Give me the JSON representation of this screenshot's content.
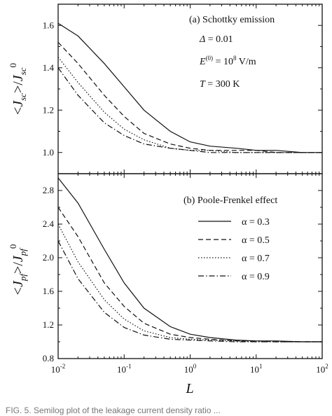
{
  "chart_data": [
    {
      "type": "line",
      "panel": "a",
      "annotation_title": "(a) Schottky emission",
      "annotation_params": [
        "Δ = 0.01",
        "E(0) = 10^8 V/m",
        "T = 300 K"
      ],
      "ylabel": "<Jsc>/Jsc0",
      "xlabel": "",
      "xscale": "log",
      "xlim": [
        0.01,
        100
      ],
      "ylim": [
        0.9,
        1.7
      ],
      "yticks": [
        1.0,
        1.2,
        1.4,
        1.6
      ],
      "ytick_labels": [
        "1.0",
        "1.2",
        "1.4",
        "1.6"
      ],
      "series": [
        {
          "name": "α = 0.3",
          "style": "solid",
          "x": [
            0.01,
            0.02,
            0.05,
            0.1,
            0.2,
            0.5,
            1,
            2,
            5,
            10,
            20,
            50,
            100
          ],
          "y": [
            1.61,
            1.55,
            1.42,
            1.31,
            1.2,
            1.1,
            1.05,
            1.03,
            1.02,
            1.01,
            1.01,
            1.0,
            1.0
          ]
        },
        {
          "name": "α = 0.5",
          "style": "dashed",
          "x": [
            0.01,
            0.02,
            0.05,
            0.1,
            0.2,
            0.5,
            1,
            2,
            5,
            10,
            20,
            50,
            100
          ],
          "y": [
            1.52,
            1.42,
            1.27,
            1.17,
            1.09,
            1.04,
            1.02,
            1.01,
            1.01,
            1.01,
            1.0,
            1.0,
            1.0
          ]
        },
        {
          "name": "α = 0.7",
          "style": "dotted",
          "x": [
            0.01,
            0.02,
            0.05,
            0.1,
            0.2,
            0.5,
            1,
            2,
            5,
            10,
            20,
            50,
            100
          ],
          "y": [
            1.45,
            1.33,
            1.19,
            1.11,
            1.06,
            1.02,
            1.01,
            1.01,
            1.0,
            1.0,
            1.0,
            1.0,
            1.0
          ]
        },
        {
          "name": "α = 0.9",
          "style": "dashdot",
          "x": [
            0.01,
            0.02,
            0.05,
            0.1,
            0.2,
            0.5,
            1,
            2,
            5,
            10,
            20,
            50,
            100
          ],
          "y": [
            1.4,
            1.27,
            1.14,
            1.08,
            1.04,
            1.02,
            1.01,
            1.0,
            1.0,
            1.0,
            1.0,
            1.0,
            1.0
          ]
        }
      ]
    },
    {
      "type": "line",
      "panel": "b",
      "annotation_title": "(b) Poole-Frenkel effect",
      "ylabel": "<Jpf>/Jpf0",
      "xlabel": "L",
      "xscale": "log",
      "xlim": [
        0.01,
        100
      ],
      "ylim": [
        0.8,
        3.0
      ],
      "yticks": [
        0.8,
        1.2,
        1.6,
        2.0,
        2.4,
        2.8
      ],
      "ytick_labels": [
        "0.8",
        "1.2",
        "1.6",
        "2.0",
        "2.4",
        "2.8"
      ],
      "xtick_values": [
        0.01,
        0.1,
        1,
        10,
        100
      ],
      "legend": "right",
      "series": [
        {
          "name": "α = 0.3",
          "style": "solid",
          "x": [
            0.01,
            0.02,
            0.05,
            0.1,
            0.2,
            0.5,
            1,
            2,
            5,
            10,
            20,
            50,
            100
          ],
          "y": [
            2.95,
            2.65,
            2.1,
            1.7,
            1.4,
            1.18,
            1.09,
            1.05,
            1.02,
            1.01,
            1.01,
            1.0,
            1.0
          ]
        },
        {
          "name": "α = 0.5",
          "style": "dashed",
          "x": [
            0.01,
            0.02,
            0.05,
            0.1,
            0.2,
            0.5,
            1,
            2,
            5,
            10,
            20,
            50,
            100
          ],
          "y": [
            2.6,
            2.25,
            1.7,
            1.42,
            1.22,
            1.09,
            1.05,
            1.03,
            1.01,
            1.01,
            1.0,
            1.0,
            1.0
          ]
        },
        {
          "name": "α = 0.7",
          "style": "dotted",
          "x": [
            0.01,
            0.02,
            0.05,
            0.1,
            0.2,
            0.5,
            1,
            2,
            5,
            10,
            20,
            50,
            100
          ],
          "y": [
            2.4,
            1.95,
            1.5,
            1.27,
            1.13,
            1.05,
            1.03,
            1.02,
            1.01,
            1.0,
            1.0,
            1.0,
            1.0
          ]
        },
        {
          "name": "α = 0.9",
          "style": "dashdot",
          "x": [
            0.01,
            0.02,
            0.05,
            0.1,
            0.2,
            0.5,
            1,
            2,
            5,
            10,
            20,
            50,
            100
          ],
          "y": [
            2.2,
            1.75,
            1.35,
            1.17,
            1.08,
            1.03,
            1.02,
            1.01,
            1.0,
            1.0,
            1.0,
            1.0,
            1.0
          ]
        }
      ]
    }
  ],
  "caption_strip": "FIG. 5. Semilog plot of the leakage current density ratio ..."
}
